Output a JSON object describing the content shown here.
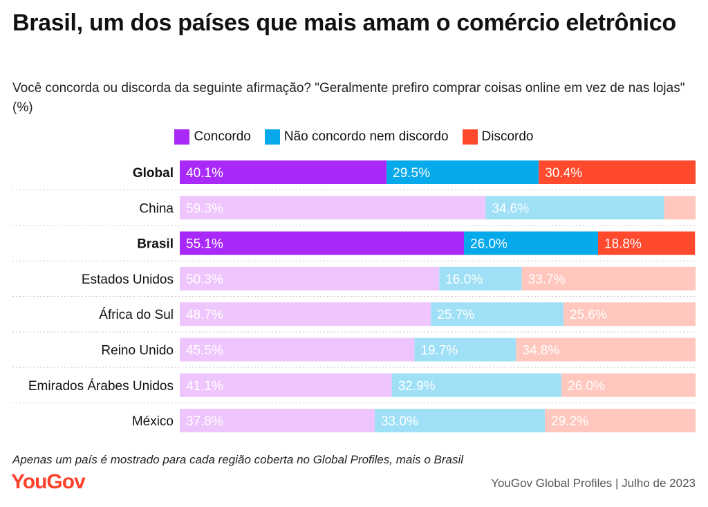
{
  "title": "Brasil, um dos países que mais amam o comércio eletrônico",
  "subtitle": "Você concorda ou discorda da seguinte afirmação? \"Geralmente prefiro comprar coisas online em vez de nas lojas\" (%)",
  "footnote": "Apenas um país é mostrado para cada região coberta no Global Profiles, mais o Brasil",
  "logo": "YouGov",
  "source": "YouGov Global Profiles | Julho de 2023",
  "colors": {
    "concordo": "#a929f8",
    "neutro": "#06a9ea",
    "discordo": "#ff4a2e",
    "concordo_faded": "#eec5fd",
    "neutro_faded": "#9fe0f7",
    "discordo_faded": "#ffc7be",
    "logo": "#ff412c"
  },
  "chart_data": {
    "type": "bar",
    "orientation": "horizontal",
    "stacked": true,
    "legend_position": "top",
    "categories": [
      "Global",
      "China",
      "Brasil",
      "Estados Unidos",
      "África do Sul",
      "Reino Unido",
      "Emirados Árabes Unidos",
      "México"
    ],
    "highlighted": [
      "Global",
      "Brasil"
    ],
    "series": [
      {
        "name": "Concordo",
        "values": [
          40.1,
          59.3,
          55.1,
          50.3,
          48.7,
          45.5,
          41.1,
          37.8
        ]
      },
      {
        "name": "Não concordo nem discordo",
        "values": [
          29.5,
          34.6,
          26.0,
          16.0,
          25.7,
          19.7,
          32.9,
          33.0
        ]
      },
      {
        "name": "Discordo",
        "values": [
          30.4,
          6.1,
          18.8,
          33.7,
          25.6,
          34.8,
          26.0,
          29.2
        ]
      }
    ],
    "data_labels": [
      [
        "40.1%",
        "59.3%",
        "55.1%",
        "50.3%",
        "48.7%",
        "45.5%",
        "41.1%",
        "37.8%"
      ],
      [
        "29.5%",
        "34.6%",
        "26.0%",
        "16.0%",
        "25.7%",
        "19.7%",
        "32.9%",
        "33.0%"
      ],
      [
        "30.4%",
        "",
        "18.8%",
        "33.7%",
        "25.6%",
        "34.8%",
        "26.0%",
        "29.2%"
      ]
    ],
    "xlim": [
      0,
      100
    ]
  }
}
